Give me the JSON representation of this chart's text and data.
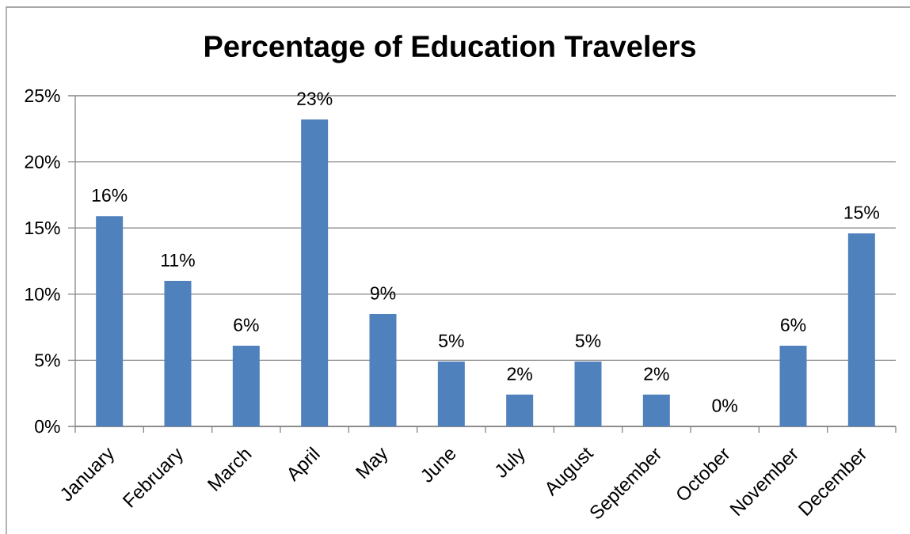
{
  "chart_data": {
    "type": "bar",
    "title": "Percentage of Education Travelers",
    "categories": [
      "January",
      "February",
      "March",
      "April",
      "May",
      "June",
      "July",
      "August",
      "September",
      "October",
      "November",
      "December"
    ],
    "values": [
      15.9,
      11.0,
      6.1,
      23.2,
      8.5,
      4.9,
      2.4,
      4.9,
      2.4,
      0,
      6.1,
      14.6
    ],
    "value_labels": [
      "16%",
      "11%",
      "6%",
      "23%",
      "9%",
      "5%",
      "2%",
      "5%",
      "2%",
      "0%",
      "6%",
      "15%"
    ],
    "color": "#4f81bd",
    "ylim": [
      0,
      25
    ],
    "yticks": [
      {
        "value": 0,
        "label": "0%"
      },
      {
        "value": 5,
        "label": "5%"
      },
      {
        "value": 10,
        "label": "10%"
      },
      {
        "value": 15,
        "label": "15%"
      },
      {
        "value": 20,
        "label": "20%"
      },
      {
        "value": 25,
        "label": "25%"
      }
    ],
    "grid": "y"
  }
}
